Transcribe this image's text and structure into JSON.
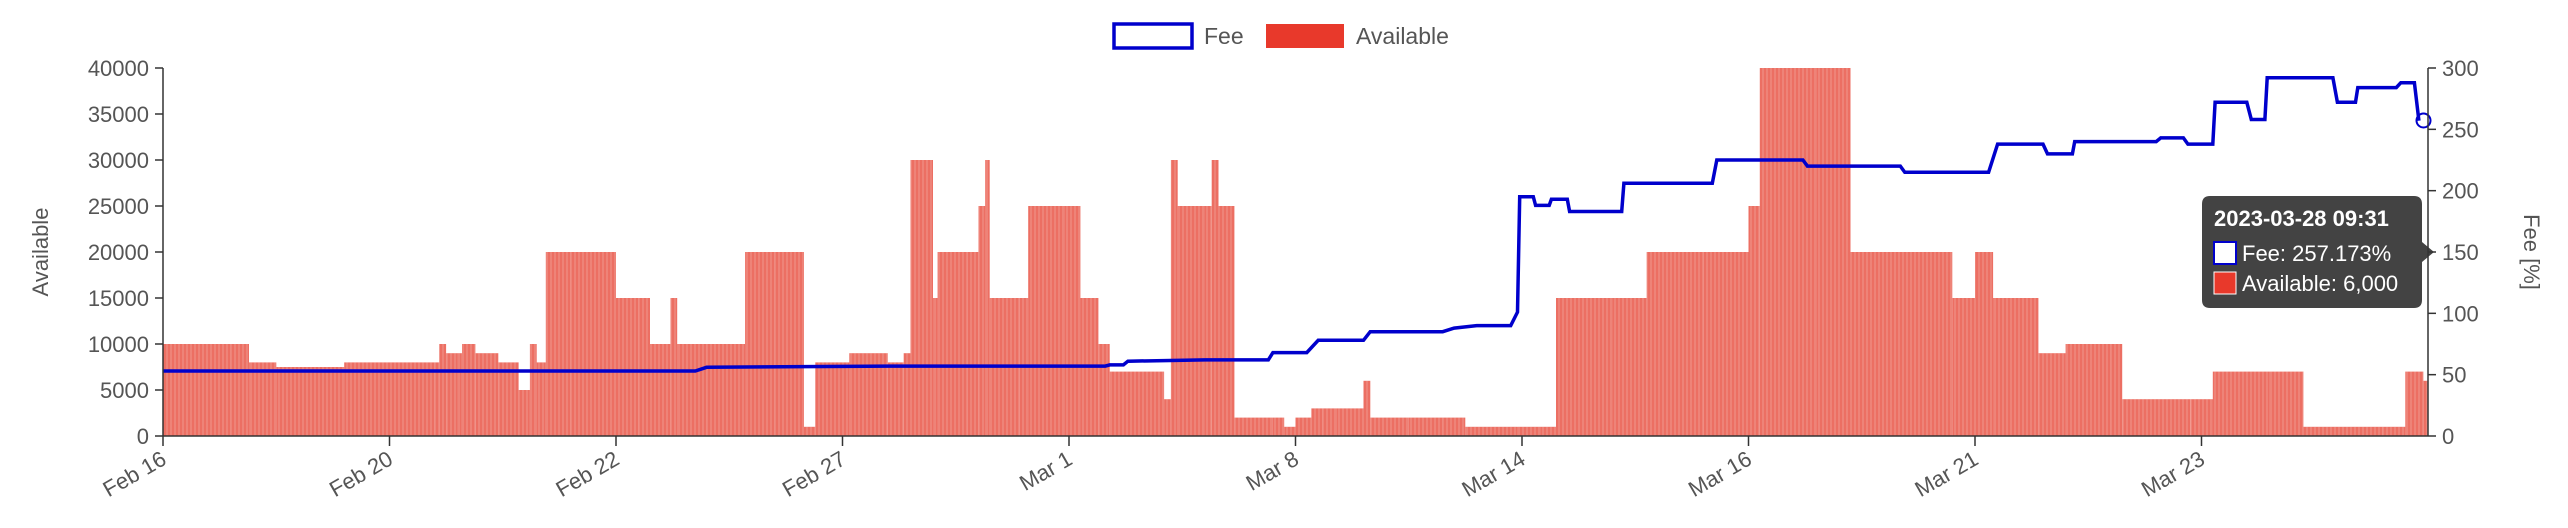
{
  "chart_data": {
    "type": "bar",
    "legend": {
      "position": "top-center",
      "items": [
        {
          "name": "Fee",
          "color": "#0000cc",
          "style": "line"
        },
        {
          "name": "Available",
          "color": "#e8392b",
          "style": "bar"
        }
      ]
    },
    "x_ticks": [
      "Feb 16",
      "Feb 20",
      "Feb 22",
      "Feb 27",
      "Mar 1",
      "Mar 8",
      "Mar 14",
      "Mar 16",
      "Mar 21",
      "Mar 23"
    ],
    "x_tick_positions": [
      0,
      1,
      2,
      3,
      4,
      5,
      6,
      7,
      8,
      9
    ],
    "x_range": [
      0,
      10
    ],
    "left_axis": {
      "title": "Available",
      "range": [
        0,
        40000
      ],
      "ticks": [
        "0",
        "5000",
        "10000",
        "15000",
        "20000",
        "25000",
        "30000",
        "35000",
        "40000"
      ]
    },
    "right_axis": {
      "title": "Fee [%]",
      "range": [
        0,
        300
      ],
      "ticks": [
        "0",
        "50",
        "100",
        "150",
        "200",
        "250",
        "300"
      ]
    },
    "grid": false,
    "series": [
      {
        "name": "Available",
        "type": "bar",
        "color": "#e8392b",
        "points": [
          [
            0.0,
            10000
          ],
          [
            0.3,
            10000
          ],
          [
            0.38,
            8000
          ],
          [
            0.5,
            7500
          ],
          [
            0.8,
            8000
          ],
          [
            1.0,
            8000
          ],
          [
            1.2,
            8000
          ],
          [
            1.22,
            10000
          ],
          [
            1.25,
            9000
          ],
          [
            1.3,
            9000
          ],
          [
            1.32,
            10000
          ],
          [
            1.36,
            10000
          ],
          [
            1.38,
            9000
          ],
          [
            1.48,
            8000
          ],
          [
            1.57,
            5000
          ],
          [
            1.62,
            10000
          ],
          [
            1.65,
            8000
          ],
          [
            1.69,
            20000
          ],
          [
            1.8,
            20000
          ],
          [
            2.0,
            15000
          ],
          [
            2.1,
            15000
          ],
          [
            2.15,
            10000
          ],
          [
            2.24,
            15000
          ],
          [
            2.27,
            10000
          ],
          [
            2.4,
            10000
          ],
          [
            2.57,
            20000
          ],
          [
            2.7,
            20000
          ],
          [
            2.83,
            1000
          ],
          [
            2.88,
            8000
          ],
          [
            3.03,
            9000
          ],
          [
            3.2,
            8000
          ],
          [
            3.27,
            9000
          ],
          [
            3.3,
            30000
          ],
          [
            3.4,
            15000
          ],
          [
            3.42,
            20000
          ],
          [
            3.55,
            20000
          ],
          [
            3.6,
            25000
          ],
          [
            3.63,
            30000
          ],
          [
            3.65,
            15000
          ],
          [
            3.78,
            15000
          ],
          [
            3.82,
            25000
          ],
          [
            3.98,
            25000
          ],
          [
            4.05,
            15000
          ],
          [
            4.13,
            10000
          ],
          [
            4.18,
            7000
          ],
          [
            4.3,
            7000
          ],
          [
            4.42,
            4000
          ],
          [
            4.45,
            30000
          ],
          [
            4.48,
            25000
          ],
          [
            4.6,
            25000
          ],
          [
            4.63,
            30000
          ],
          [
            4.66,
            25000
          ],
          [
            4.73,
            2000
          ],
          [
            4.9,
            2000
          ],
          [
            4.95,
            1000
          ],
          [
            5.0,
            2000
          ],
          [
            5.07,
            3000
          ],
          [
            5.12,
            3000
          ],
          [
            5.18,
            3000
          ],
          [
            5.3,
            6000
          ],
          [
            5.33,
            2000
          ],
          [
            5.5,
            2000
          ],
          [
            5.65,
            2000
          ],
          [
            5.75,
            1000
          ],
          [
            5.85,
            1000
          ],
          [
            5.98,
            1000
          ],
          [
            6.08,
            1000
          ],
          [
            6.15,
            15000
          ],
          [
            6.3,
            15000
          ],
          [
            6.4,
            15000
          ],
          [
            6.55,
            20000
          ],
          [
            6.8,
            20000
          ],
          [
            7.0,
            25000
          ],
          [
            7.05,
            40000
          ],
          [
            7.3,
            40000
          ],
          [
            7.45,
            20000
          ],
          [
            7.7,
            20000
          ],
          [
            7.9,
            15000
          ],
          [
            8.0,
            20000
          ],
          [
            8.08,
            15000
          ],
          [
            8.28,
            9000
          ],
          [
            8.4,
            10000
          ],
          [
            8.6,
            10000
          ],
          [
            8.65,
            4000
          ],
          [
            8.95,
            4000
          ],
          [
            9.05,
            7000
          ],
          [
            9.3,
            7000
          ],
          [
            9.45,
            1000
          ],
          [
            9.8,
            1000
          ],
          [
            9.9,
            7000
          ],
          [
            9.98,
            6000
          ]
        ]
      },
      {
        "name": "Fee",
        "type": "line",
        "color": "#0000cc",
        "points": [
          [
            0.0,
            53
          ],
          [
            2.35,
            53
          ],
          [
            2.4,
            56
          ],
          [
            3.2,
            57
          ],
          [
            4.16,
            57
          ],
          [
            4.18,
            58
          ],
          [
            4.24,
            58
          ],
          [
            4.26,
            61
          ],
          [
            4.6,
            62
          ],
          [
            4.88,
            62
          ],
          [
            4.9,
            68
          ],
          [
            5.05,
            68
          ],
          [
            5.1,
            78
          ],
          [
            5.3,
            78
          ],
          [
            5.33,
            85
          ],
          [
            5.65,
            85
          ],
          [
            5.7,
            88
          ],
          [
            5.8,
            90
          ],
          [
            5.95,
            90
          ],
          [
            5.98,
            101
          ],
          [
            5.99,
            195
          ],
          [
            6.05,
            195
          ],
          [
            6.06,
            188
          ],
          [
            6.12,
            188
          ],
          [
            6.13,
            193
          ],
          [
            6.2,
            193
          ],
          [
            6.21,
            183
          ],
          [
            6.44,
            183
          ],
          [
            6.45,
            206
          ],
          [
            6.84,
            206
          ],
          [
            6.86,
            225
          ],
          [
            7.24,
            225
          ],
          [
            7.26,
            220
          ],
          [
            7.67,
            220
          ],
          [
            7.69,
            215
          ],
          [
            8.06,
            215
          ],
          [
            8.1,
            238
          ],
          [
            8.3,
            238
          ],
          [
            8.32,
            230
          ],
          [
            8.43,
            230
          ],
          [
            8.44,
            240
          ],
          [
            8.8,
            240
          ],
          [
            8.82,
            243
          ],
          [
            8.92,
            243
          ],
          [
            8.94,
            238
          ],
          [
            9.05,
            238
          ],
          [
            9.06,
            272
          ],
          [
            9.2,
            272
          ],
          [
            9.22,
            258
          ],
          [
            9.28,
            258
          ],
          [
            9.29,
            292
          ],
          [
            9.58,
            292
          ],
          [
            9.6,
            272
          ],
          [
            9.68,
            272
          ],
          [
            9.69,
            284
          ],
          [
            9.86,
            284
          ],
          [
            9.88,
            288
          ],
          [
            9.94,
            288
          ],
          [
            9.96,
            257
          ]
        ]
      }
    ],
    "tooltip": {
      "title": "2023-03-28 09:31",
      "lines": [
        {
          "series": "Fee",
          "label": "Fee: 257.173%",
          "color": "#0000cc"
        },
        {
          "series": "Available",
          "label": "Available: 6,000",
          "color": "#e8392b"
        }
      ],
      "x": 9.98,
      "fee": 257.173,
      "available": 6000
    }
  }
}
